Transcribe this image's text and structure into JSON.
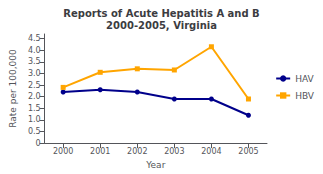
{
  "chart_data": {
    "type": "line",
    "title": "Reports of Acute Hepatitis A and B\n2000-2005, Virginia",
    "xlabel": "Year",
    "ylabel": "Rate per 100,000",
    "x": [
      2000,
      2001,
      2002,
      2003,
      2004,
      2005
    ],
    "series": [
      {
        "name": "HAV",
        "color": "#00008B",
        "marker": "circle",
        "values": [
          2.2,
          2.3,
          2.2,
          1.9,
          1.9,
          1.2
        ]
      },
      {
        "name": "HBV",
        "color": "#FFA500",
        "marker": "square",
        "values": [
          2.4,
          3.05,
          3.2,
          3.15,
          4.15,
          1.9
        ]
      }
    ],
    "xlim": [
      1999.5,
      2005.5
    ],
    "xticks": [
      2000,
      2001,
      2002,
      2003,
      2004,
      2005
    ],
    "ylim": [
      0,
      4.7
    ],
    "yticks": [
      0,
      0.5,
      {
        "value": 1.0,
        "label": "1.0"
      },
      1.5,
      {
        "value": 2.0,
        "label": "2.0"
      },
      2.5,
      {
        "value": 3.0,
        "label": "3.0"
      },
      3.5,
      {
        "value": 4.0,
        "label": "4.0"
      },
      4.5
    ],
    "grid": false,
    "legend": "right"
  }
}
